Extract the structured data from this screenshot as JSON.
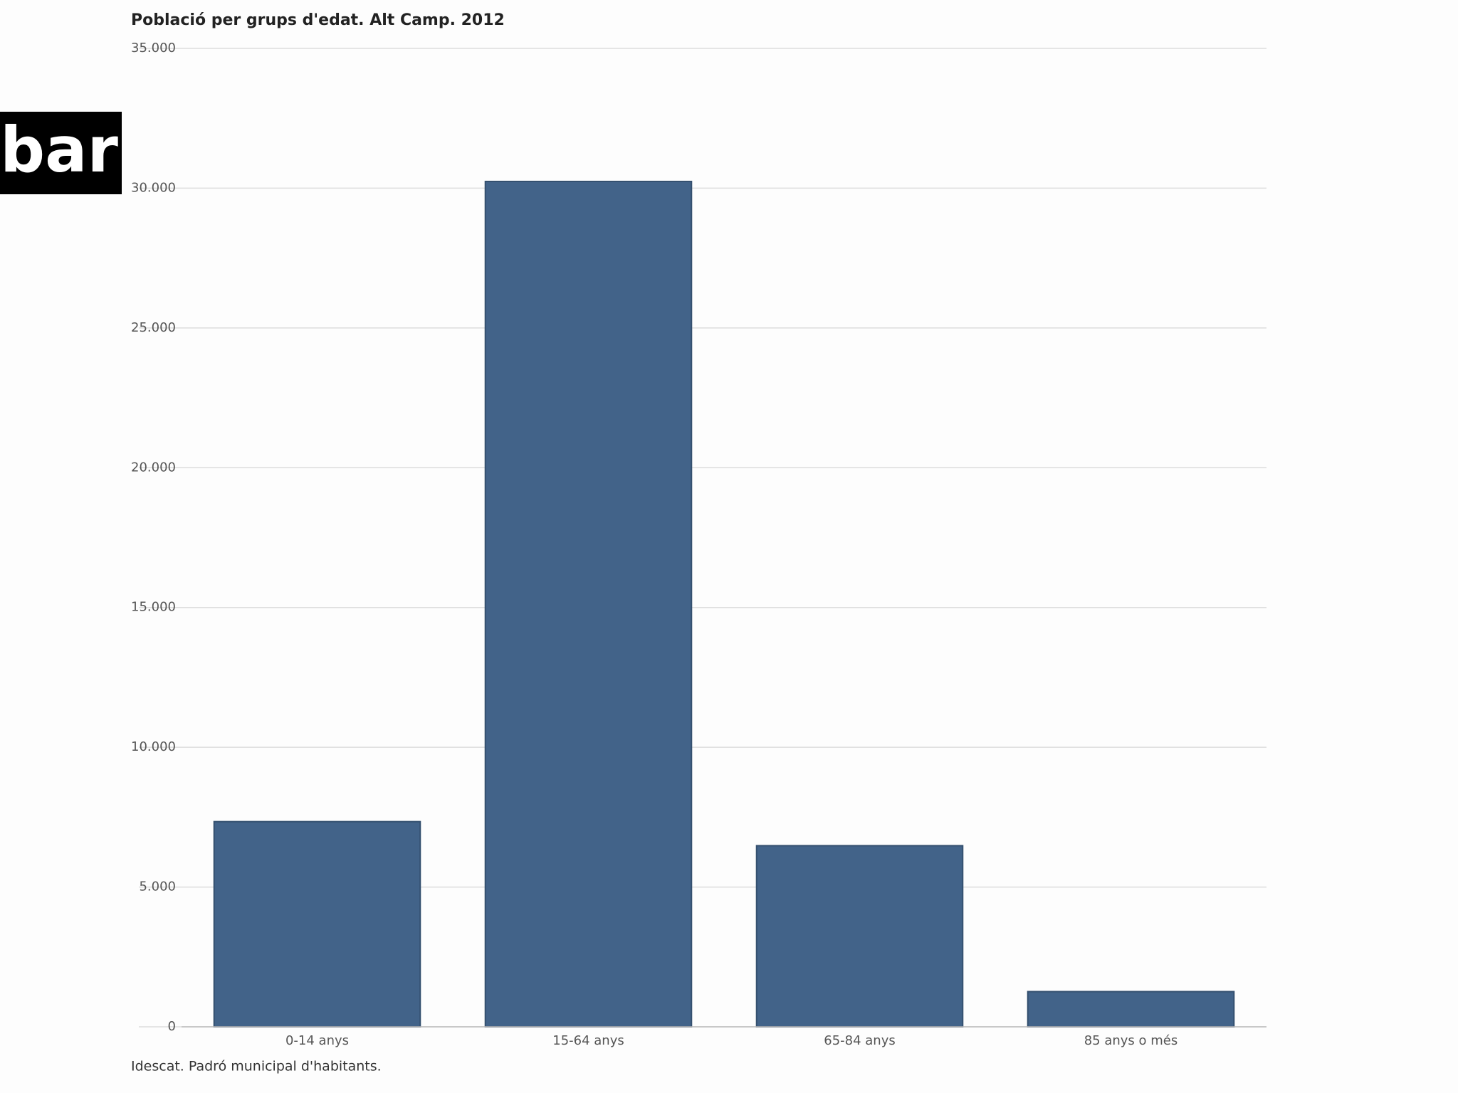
{
  "overlay_label": "bar",
  "chart_data": {
    "type": "bar",
    "title": "Població per grups d'edat. Alt Camp. 2012",
    "source": "Idescat. Padró municipal d'habitants.",
    "categories": [
      "0-14 anys",
      "15-64 anys",
      "65-84 anys",
      "85 anys o més"
    ],
    "values": [
      7340,
      30240,
      6480,
      1260
    ],
    "color": "#426389",
    "ylim": [
      0,
      35000
    ],
    "yticks": [
      0,
      {
        "value": 5000,
        "label": "5.000"
      },
      {
        "value": 10000,
        "label": "10.000"
      },
      {
        "value": 15000,
        "label": "15.000"
      },
      {
        "value": 20000,
        "label": "20.000"
      },
      {
        "value": 25000,
        "label": "25.000"
      },
      {
        "value": 30000,
        "label": "30.000"
      },
      {
        "value": 35000,
        "label": "35.000"
      }
    ],
    "grid": true
  }
}
